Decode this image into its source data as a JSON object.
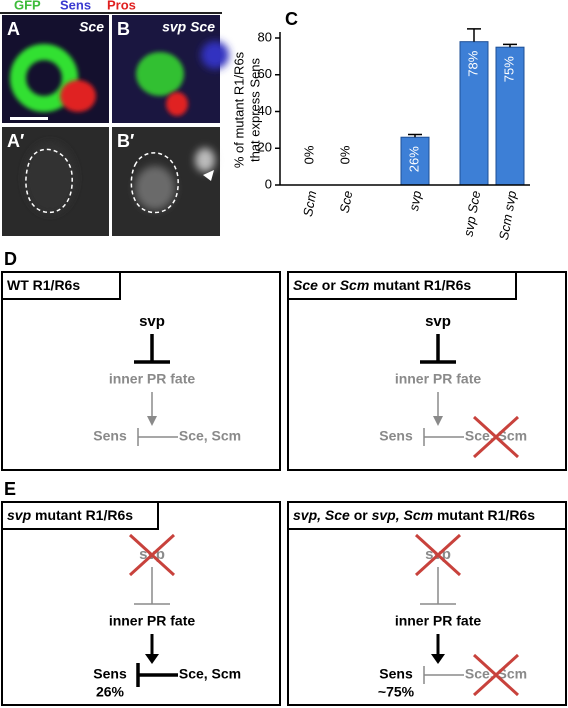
{
  "panel_labels": [
    "A",
    "B",
    "A′",
    "B′",
    "C",
    "D",
    "E"
  ],
  "channels": [
    "GFP",
    "Sens",
    "Pros"
  ],
  "micrograph_genotypes": [
    "Sce",
    "svp Sce"
  ],
  "chart_data": {
    "type": "bar",
    "y_label": [
      "% of mutant R1/R6s",
      "that express Sens"
    ],
    "categories": [
      "Scm",
      "Sce",
      "svp",
      "svp Sce",
      "Scm svp"
    ],
    "values": [
      0,
      0,
      26,
      78,
      75
    ],
    "value_labels": [
      "0%",
      "0%",
      "26%",
      "78%",
      "75%"
    ],
    "errors": [
      0,
      0,
      1.5,
      7,
      1.5
    ],
    "color": "#3d7fd6",
    "ylim": [
      0,
      80
    ],
    "yticks": [
      0,
      20,
      40,
      60,
      80
    ],
    "grid": false
  },
  "diagrams": [
    {
      "title_parts": [
        "WT R1/R6s"
      ],
      "nodes": [
        "svp",
        "inner PR fate",
        "Sens",
        "Sce, Scm"
      ]
    },
    {
      "title_parts": [
        "Sce",
        " or ",
        "Scm",
        " mutant R1/R6s"
      ],
      "nodes": [
        "svp",
        "inner PR fate",
        "Sens",
        "Sce, Scm"
      ]
    },
    {
      "title_parts": [
        "svp",
        " mutant R1/R6s"
      ],
      "nodes": [
        "svp",
        "inner PR fate",
        "Sens",
        "Sce, Scm"
      ],
      "percent": "26%"
    },
    {
      "title_parts": [
        "svp, Sce",
        " or ",
        "svp, Scm",
        " mutant R1/R6s"
      ],
      "nodes": [
        "svp",
        "inner PR fate",
        "Sens",
        "Sce, Scm"
      ],
      "percent": "~75%"
    }
  ]
}
